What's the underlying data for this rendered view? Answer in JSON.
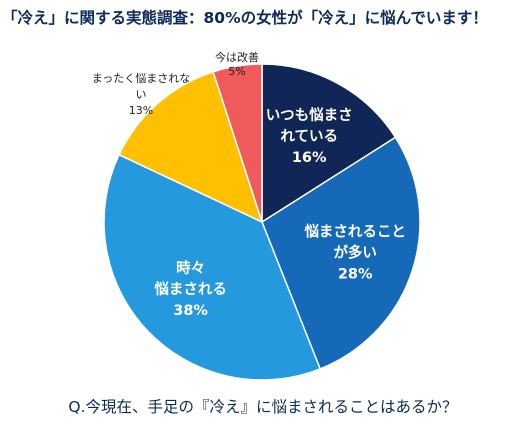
{
  "chart_data": {
    "type": "pie",
    "title": "「冷え」に関する実態調査：80%の女性が「冷え」に悩んでいます！",
    "question": "Q.今現在、手足の『冷え』に悩まされることはあるか？",
    "start_angle_deg": 0,
    "direction": "clockwise",
    "slices": [
      {
        "label_lines": [
          "いつも悩まさ",
          "れている"
        ],
        "value": 16,
        "value_label": "16%",
        "color": "#0f2657",
        "text_color": "#ffffff",
        "label_placement": "inside"
      },
      {
        "label_lines": [
          "悩まされること",
          "が多い"
        ],
        "value": 28,
        "value_label": "28%",
        "color": "#1669b8",
        "text_color": "#ffffff",
        "label_placement": "inside"
      },
      {
        "label_lines": [
          "時々",
          "悩まされる"
        ],
        "value": 38,
        "value_label": "38%",
        "color": "#2599de",
        "text_color": "#ffffff",
        "label_placement": "inside"
      },
      {
        "label_lines": [
          "まったく悩まされな",
          "い"
        ],
        "value": 13,
        "value_label": "13%",
        "color": "#ffc000",
        "text_color": "#1f1f1f",
        "label_placement": "outside-left"
      },
      {
        "label_lines": [
          "今は改善"
        ],
        "value": 5,
        "value_label": "5%",
        "color": "#f05a5a",
        "text_color": "#1f1f1f",
        "label_placement": "outside-top"
      }
    ]
  }
}
